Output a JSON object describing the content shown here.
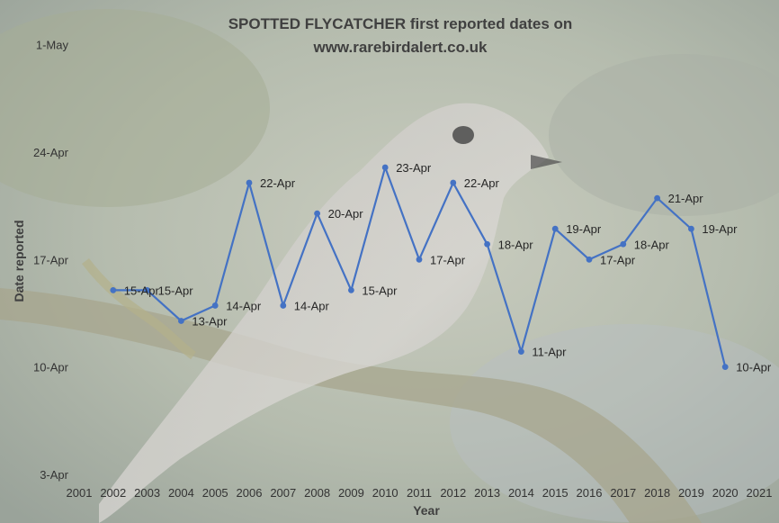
{
  "chart_data": {
    "type": "line",
    "title_line1": "SPOTTED FLYCATCHER first reported dates on",
    "title_line2": "www.rarebirdalert.co.uk",
    "xlabel": "Year",
    "ylabel": "Date reported",
    "xlim": [
      2001,
      2021
    ],
    "x_ticks": [
      "2001",
      "2002",
      "2003",
      "2004",
      "2005",
      "2006",
      "2007",
      "2008",
      "2009",
      "2010",
      "2011",
      "2012",
      "2013",
      "2014",
      "2015",
      "2016",
      "2017",
      "2018",
      "2019",
      "2020",
      "2021"
    ],
    "y_ticks": [
      {
        "label": "3-Apr",
        "day": 3
      },
      {
        "label": "10-Apr",
        "day": 10
      },
      {
        "label": "17-Apr",
        "day": 17
      },
      {
        "label": "24-Apr",
        "day": 24
      },
      {
        "label": "1-May",
        "day": 31
      }
    ],
    "ylim_labels": [
      "3-Apr",
      "1-May"
    ],
    "grid": false,
    "line_color": "#4472C4",
    "series": [
      {
        "points": [
          {
            "x": 2002,
            "y": "15-Apr",
            "day": 15
          },
          {
            "x": 2003,
            "y": "15-Apr",
            "day": 15
          },
          {
            "x": 2004,
            "y": "13-Apr",
            "day": 13
          },
          {
            "x": 2005,
            "y": "14-Apr",
            "day": 14
          },
          {
            "x": 2006,
            "y": "22-Apr",
            "day": 22
          },
          {
            "x": 2007,
            "y": "14-Apr",
            "day": 14
          },
          {
            "x": 2008,
            "y": "20-Apr",
            "day": 20
          },
          {
            "x": 2009,
            "y": "15-Apr",
            "day": 15
          },
          {
            "x": 2010,
            "y": "23-Apr",
            "day": 23
          },
          {
            "x": 2011,
            "y": "17-Apr",
            "day": 17
          },
          {
            "x": 2012,
            "y": "22-Apr",
            "day": 22
          },
          {
            "x": 2013,
            "y": "18-Apr",
            "day": 18
          },
          {
            "x": 2014,
            "y": "11-Apr",
            "day": 11
          },
          {
            "x": 2015,
            "y": "19-Apr",
            "day": 19
          },
          {
            "x": 2016,
            "y": "17-Apr",
            "day": 17
          },
          {
            "x": 2017,
            "y": "18-Apr",
            "day": 18
          },
          {
            "x": 2018,
            "y": "21-Apr",
            "day": 21
          },
          {
            "x": 2019,
            "y": "19-Apr",
            "day": 19
          },
          {
            "x": 2020,
            "y": "10-Apr",
            "day": 10
          }
        ]
      }
    ]
  }
}
